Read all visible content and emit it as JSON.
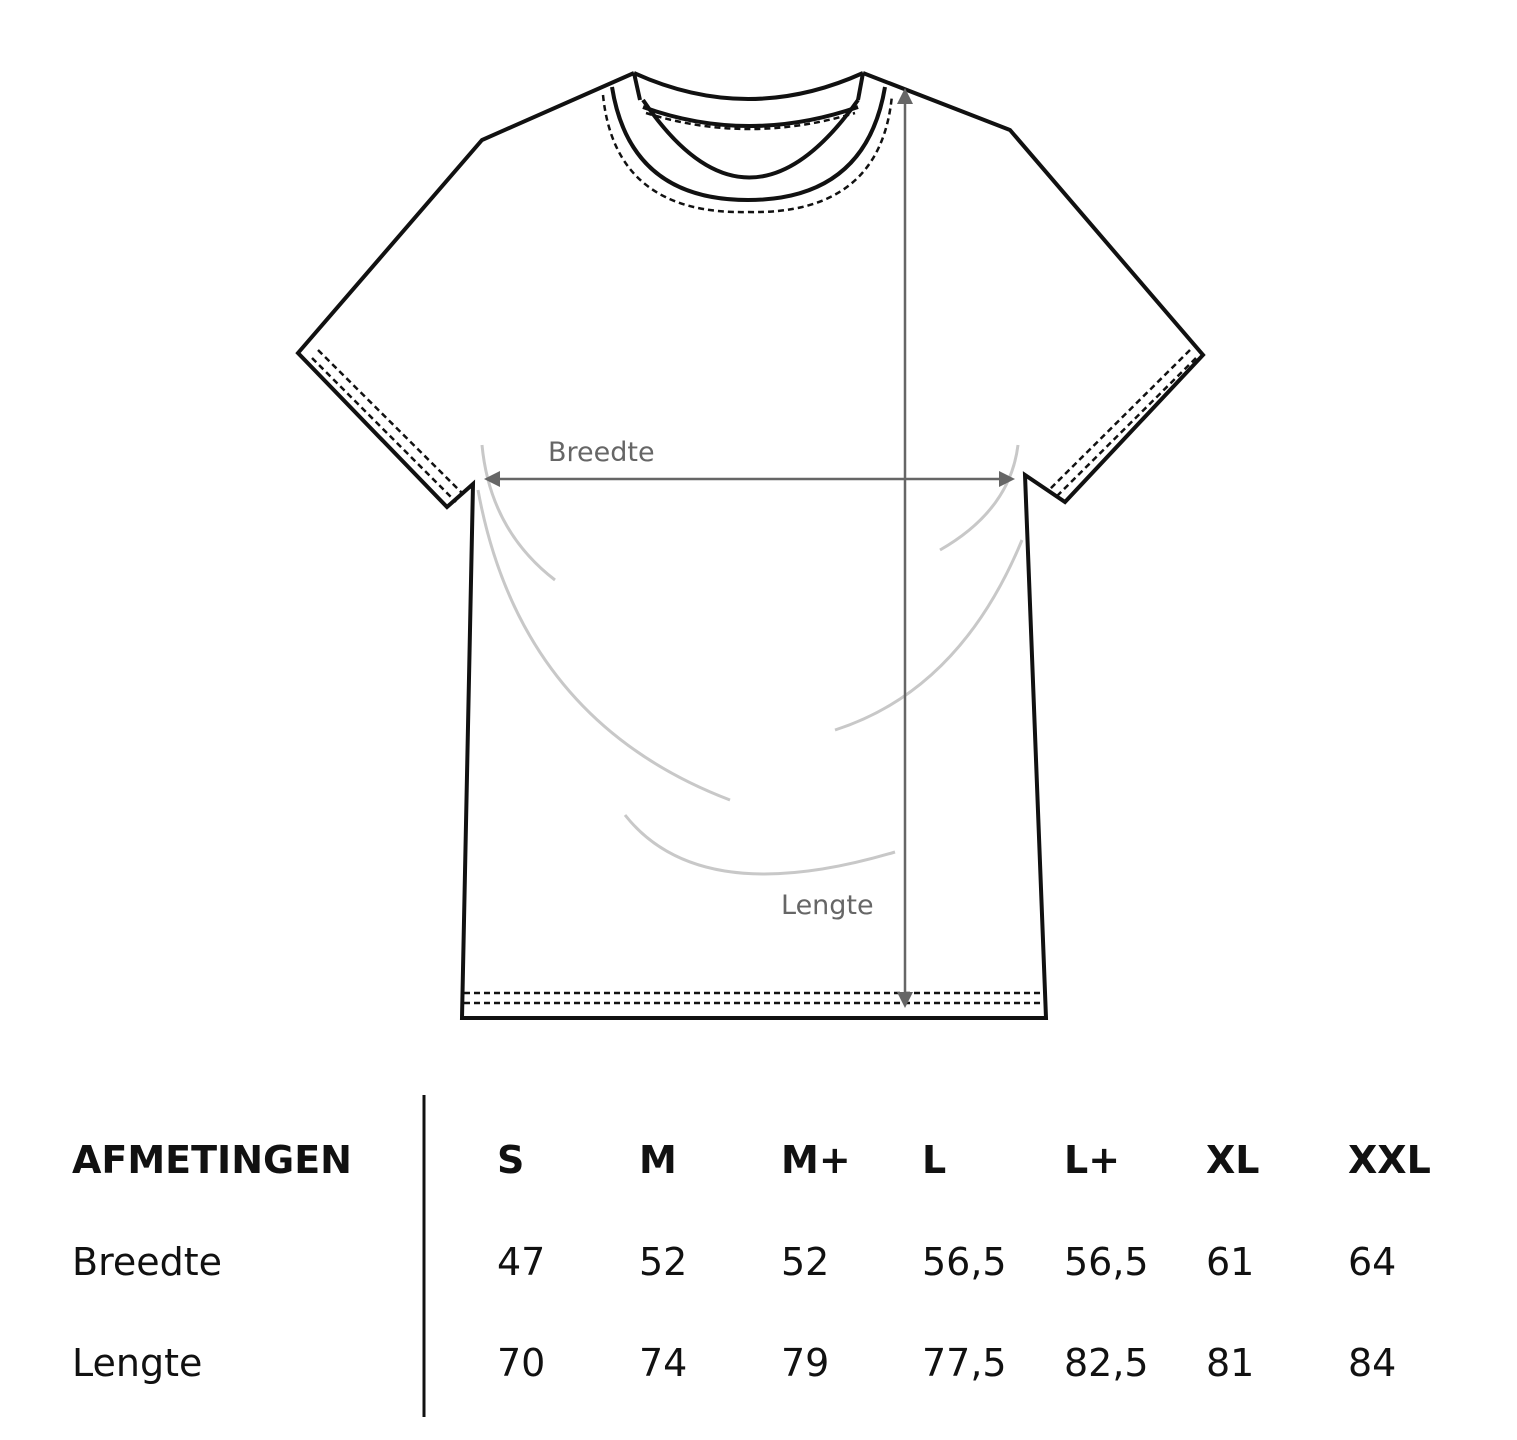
{
  "diagram": {
    "width_label": "Breedte",
    "length_label": "Lengte",
    "outline_color": "#111111",
    "arrow_color": "#666666",
    "fold_color": "#c8c8c8"
  },
  "table": {
    "title": "AFMETINGEN",
    "sizes": [
      "S",
      "M",
      "M+",
      "L",
      "L+",
      "XL",
      "XXL"
    ],
    "rows": [
      {
        "label": "Breedte",
        "values": [
          "47",
          "52",
          "52",
          "56,5",
          "56,5",
          "61",
          "64"
        ]
      },
      {
        "label": "Lengte",
        "values": [
          "70",
          "74",
          "79",
          "77,5",
          "82,5",
          "81",
          "84"
        ]
      }
    ]
  }
}
